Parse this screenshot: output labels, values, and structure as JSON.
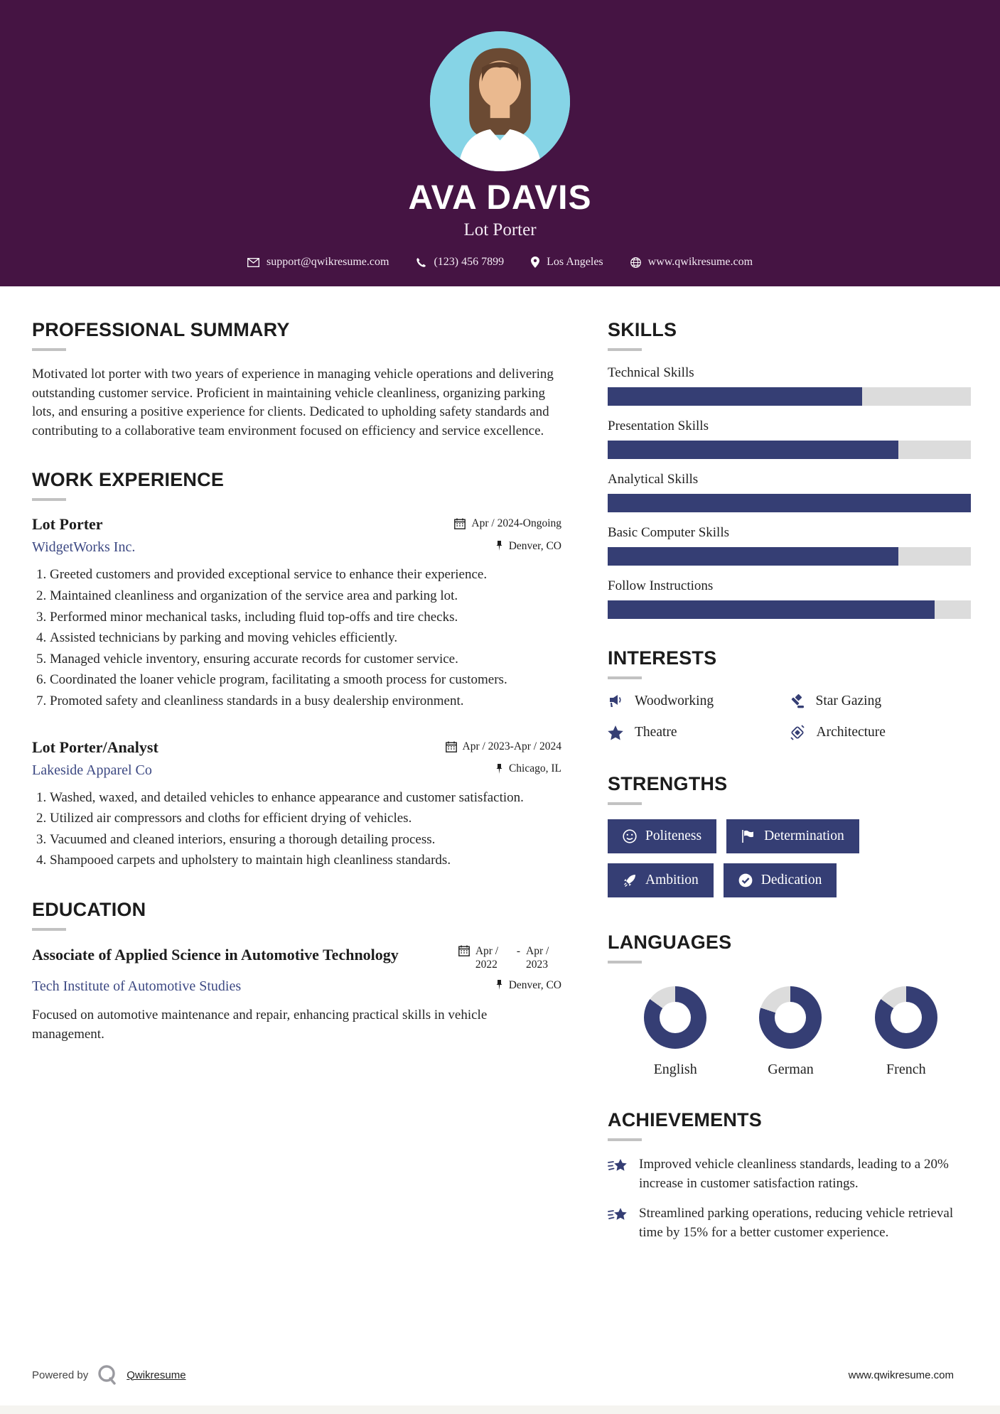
{
  "colors": {
    "header_bg": "#451443",
    "accent_navy": "#353e74",
    "bar_track": "#dcdcdc",
    "link": "#3d4983"
  },
  "header": {
    "name": "AVA DAVIS",
    "title": "Lot Porter",
    "contact": {
      "email": "support@qwikresume.com",
      "phone": "(123) 456 7899",
      "location": "Los Angeles",
      "website": "www.qwikresume.com"
    }
  },
  "summary": {
    "heading": "PROFESSIONAL SUMMARY",
    "text": "Motivated lot porter with two years of experience in managing vehicle operations and delivering outstanding customer service. Proficient in maintaining vehicle cleanliness, organizing parking lots, and ensuring a positive experience for clients. Dedicated to upholding safety standards and contributing to a collaborative team environment focused on efficiency and service excellence."
  },
  "experience": {
    "heading": "WORK EXPERIENCE",
    "jobs": [
      {
        "title": "Lot Porter",
        "company": "WidgetWorks Inc.",
        "dates": "Apr / 2024-Ongoing",
        "location": "Denver, CO",
        "bullets": [
          "Greeted customers and provided exceptional service to enhance their experience.",
          "Maintained cleanliness and organization of the service area and parking lot.",
          "Performed minor mechanical tasks, including fluid top-offs and tire checks.",
          "Assisted technicians by parking and moving vehicles efficiently.",
          "Managed vehicle inventory, ensuring accurate records for customer service.",
          "Coordinated the loaner vehicle program, facilitating a smooth process for customers.",
          "Promoted safety and cleanliness standards in a busy dealership environment."
        ]
      },
      {
        "title": "Lot Porter/Analyst",
        "company": "Lakeside Apparel Co",
        "dates": "Apr / 2023-Apr / 2024",
        "location": "Chicago, IL",
        "bullets": [
          "Washed, waxed, and detailed vehicles to enhance appearance and customer satisfaction.",
          "Utilized air compressors and cloths for efficient drying of vehicles.",
          "Vacuumed and cleaned interiors, ensuring a thorough detailing process.",
          "Shampooed carpets and upholstery to maintain high cleanliness standards."
        ]
      }
    ]
  },
  "education": {
    "heading": "EDUCATION",
    "degree": "Associate of Applied Science in Automotive Technology",
    "school": "Tech Institute of Automotive Studies",
    "date_start": "Apr / 2022",
    "date_separator": "-",
    "date_end": "Apr / 2023",
    "location": "Denver, CO",
    "description": "Focused on automotive maintenance and repair, enhancing practical skills in vehicle management."
  },
  "skills": {
    "heading": "SKILLS",
    "items": [
      {
        "label": "Technical Skills",
        "percent": 70
      },
      {
        "label": "Presentation Skills",
        "percent": 80
      },
      {
        "label": "Analytical Skills",
        "percent": 100
      },
      {
        "label": "Basic Computer Skills",
        "percent": 80
      },
      {
        "label": "Follow Instructions",
        "percent": 90
      }
    ]
  },
  "interests": {
    "heading": "INTERESTS",
    "items": [
      {
        "label": "Woodworking"
      },
      {
        "label": "Star Gazing"
      },
      {
        "label": "Theatre"
      },
      {
        "label": "Architecture"
      }
    ]
  },
  "strengths": {
    "heading": "STRENGTHS",
    "items": [
      {
        "label": "Politeness"
      },
      {
        "label": "Determination"
      },
      {
        "label": "Ambition"
      },
      {
        "label": "Dedication"
      }
    ]
  },
  "languages": {
    "heading": "LANGUAGES",
    "items": [
      {
        "label": "English",
        "percent": 85
      },
      {
        "label": "German",
        "percent": 80
      },
      {
        "label": "French",
        "percent": 85
      }
    ]
  },
  "achievements": {
    "heading": "ACHIEVEMENTS",
    "items": [
      "Improved vehicle cleanliness standards, leading to a 20% increase in customer satisfaction ratings.",
      "Streamlined parking operations, reducing vehicle retrieval time by 15% for a better customer experience."
    ]
  },
  "footer": {
    "powered_by": "Powered by",
    "brand": "Qwikresume",
    "site": "www.qwikresume.com"
  }
}
